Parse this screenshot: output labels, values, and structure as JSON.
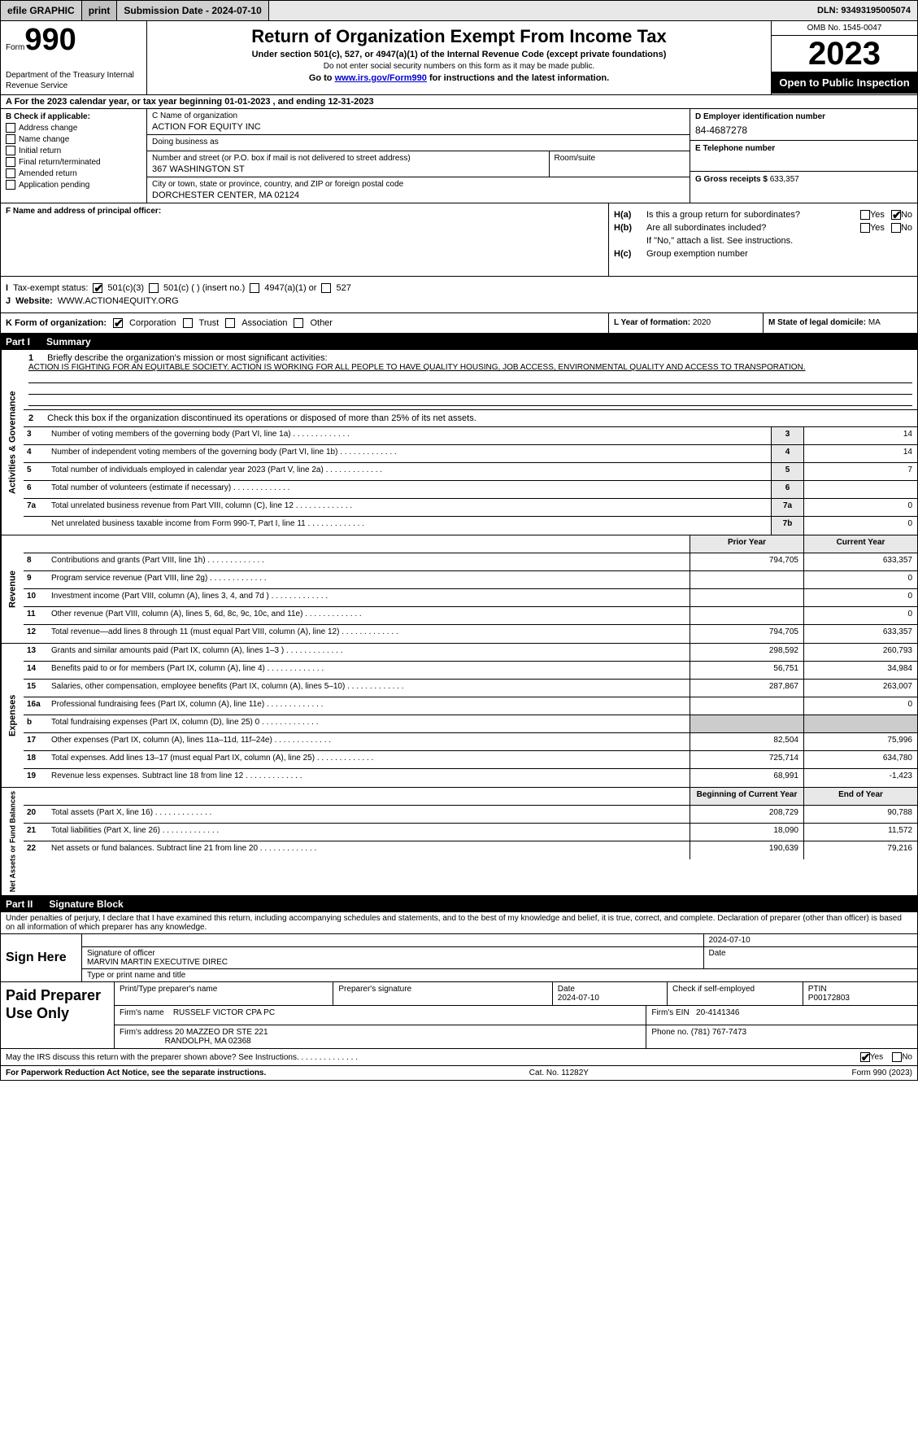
{
  "topbar": {
    "efile_label": "efile GRAPHIC",
    "print": "print",
    "submission_label": "Submission Date - 2024-07-10",
    "dln": "DLN: 93493195005074"
  },
  "header": {
    "form_prefix": "Form",
    "form_number": "990",
    "dept": "Department of the Treasury\nInternal Revenue Service",
    "title": "Return of Organization Exempt From Income Tax",
    "subtitle": "Under section 501(c), 527, or 4947(a)(1) of the Internal Revenue Code (except private foundations)",
    "warning": "Do not enter social security numbers on this form as it may be made public.",
    "goto_pre": "Go to ",
    "goto_link": "www.irs.gov/Form990",
    "goto_post": " for instructions and the latest information.",
    "omb": "OMB No. 1545-0047",
    "year": "2023",
    "inspect": "Open to Public Inspection"
  },
  "row_a": "A For the 2023 calendar year, or tax year beginning 01-01-2023   , and ending 12-31-2023",
  "col_b": {
    "heading": "B Check if applicable:",
    "items": [
      "Address change",
      "Name change",
      "Initial return",
      "Final return/terminated",
      "Amended return",
      "Application pending"
    ]
  },
  "col_c": {
    "name_label": "C Name of organization",
    "name_value": "ACTION FOR EQUITY INC",
    "dba_label": "Doing business as",
    "dba_value": "",
    "street_label": "Number and street (or P.O. box if mail is not delivered to street address)",
    "street_value": "367 WASHINGTON ST",
    "room_label": "Room/suite",
    "room_value": "",
    "city_label": "City or town, state or province, country, and ZIP or foreign postal code",
    "city_value": "DORCHESTER CENTER, MA  02124"
  },
  "col_d": {
    "ein_label": "D Employer identification number",
    "ein_value": "84-4687278",
    "phone_label": "E Telephone number",
    "phone_value": "",
    "gross_label": "G Gross receipts $",
    "gross_value": "633,357"
  },
  "section_f": {
    "label": "F  Name and address of principal officer:",
    "value": ""
  },
  "section_h": {
    "ha_label": "H(a)",
    "ha_text": "Is this a group return for subordinates?",
    "hb_label": "H(b)",
    "hb_text": "Are all subordinates included?",
    "hb_note": "If \"No,\" attach a list. See instructions.",
    "hc_label": "H(c)",
    "hc_text": "Group exemption number",
    "yes": "Yes",
    "no": "No"
  },
  "section_i": {
    "label": "I",
    "text": "Tax-exempt status:",
    "opt1": "501(c)(3)",
    "opt2": "501(c) (  ) (insert no.)",
    "opt3": "4947(a)(1) or",
    "opt4": "527"
  },
  "section_j": {
    "label": "J",
    "text": "Website:",
    "value": "WWW.ACTION4EQUITY.ORG"
  },
  "section_k": {
    "label": "K Form of organization:",
    "opts": [
      "Corporation",
      "Trust",
      "Association",
      "Other"
    ]
  },
  "section_l": {
    "label": "L Year of formation:",
    "value": "2020"
  },
  "section_m": {
    "label": "M State of legal domicile:",
    "value": "MA"
  },
  "part1": {
    "header_part": "Part I",
    "header_title": "Summary",
    "line1_label": "1",
    "line1_text": "Briefly describe the organization's mission or most significant activities:",
    "mission": "ACTION IS FIGHTING FOR AN EQUITABLE SOCIETY. ACTION IS WORKING FOR ALL PEOPLE TO HAVE QUALITY HOUSING, JOB ACCESS, ENVIRONMENTAL QUALITY AND ACCESS TO TRANSPORATION.",
    "line2_label": "2",
    "line2_text": "Check this box      if the organization discontinued its operations or disposed of more than 25% of its net assets.",
    "gov_side": "Activities & Governance",
    "gov_rows": [
      {
        "n": "3",
        "desc": "Number of voting members of the governing body (Part VI, line 1a)",
        "box": "3",
        "val": "14"
      },
      {
        "n": "4",
        "desc": "Number of independent voting members of the governing body (Part VI, line 1b)",
        "box": "4",
        "val": "14"
      },
      {
        "n": "5",
        "desc": "Total number of individuals employed in calendar year 2023 (Part V, line 2a)",
        "box": "5",
        "val": "7"
      },
      {
        "n": "6",
        "desc": "Total number of volunteers (estimate if necessary)",
        "box": "6",
        "val": ""
      },
      {
        "n": "7a",
        "desc": "Total unrelated business revenue from Part VIII, column (C), line 12",
        "box": "7a",
        "val": "0"
      },
      {
        "n": "",
        "desc": "Net unrelated business taxable income from Form 990-T, Part I, line 11",
        "box": "7b",
        "val": "0"
      }
    ],
    "col_header_prior": "Prior Year",
    "col_header_current": "Current Year",
    "rev_side": "Revenue",
    "rev_rows": [
      {
        "n": "8",
        "desc": "Contributions and grants (Part VIII, line 1h)",
        "prior": "794,705",
        "curr": "633,357"
      },
      {
        "n": "9",
        "desc": "Program service revenue (Part VIII, line 2g)",
        "prior": "",
        "curr": "0"
      },
      {
        "n": "10",
        "desc": "Investment income (Part VIII, column (A), lines 3, 4, and 7d )",
        "prior": "",
        "curr": "0"
      },
      {
        "n": "11",
        "desc": "Other revenue (Part VIII, column (A), lines 5, 6d, 8c, 9c, 10c, and 11e)",
        "prior": "",
        "curr": "0"
      },
      {
        "n": "12",
        "desc": "Total revenue—add lines 8 through 11 (must equal Part VIII, column (A), line 12)",
        "prior": "794,705",
        "curr": "633,357"
      }
    ],
    "exp_side": "Expenses",
    "exp_rows": [
      {
        "n": "13",
        "desc": "Grants and similar amounts paid (Part IX, column (A), lines 1–3 )",
        "prior": "298,592",
        "curr": "260,793"
      },
      {
        "n": "14",
        "desc": "Benefits paid to or for members (Part IX, column (A), line 4)",
        "prior": "56,751",
        "curr": "34,984"
      },
      {
        "n": "15",
        "desc": "Salaries, other compensation, employee benefits (Part IX, column (A), lines 5–10)",
        "prior": "287,867",
        "curr": "263,007"
      },
      {
        "n": "16a",
        "desc": "Professional fundraising fees (Part IX, column (A), line 11e)",
        "prior": "",
        "curr": "0"
      },
      {
        "n": "b",
        "desc": "Total fundraising expenses (Part IX, column (D), line 25) 0",
        "prior": "SHADE",
        "curr": "SHADE"
      },
      {
        "n": "17",
        "desc": "Other expenses (Part IX, column (A), lines 11a–11d, 11f–24e)",
        "prior": "82,504",
        "curr": "75,996"
      },
      {
        "n": "18",
        "desc": "Total expenses. Add lines 13–17 (must equal Part IX, column (A), line 25)",
        "prior": "725,714",
        "curr": "634,780"
      },
      {
        "n": "19",
        "desc": "Revenue less expenses. Subtract line 18 from line 12",
        "prior": "68,991",
        "curr": "-1,423"
      }
    ],
    "net_side": "Net Assets or Fund Balances",
    "net_header_prior": "Beginning of Current Year",
    "net_header_curr": "End of Year",
    "net_rows": [
      {
        "n": "20",
        "desc": "Total assets (Part X, line 16)",
        "prior": "208,729",
        "curr": "90,788"
      },
      {
        "n": "21",
        "desc": "Total liabilities (Part X, line 26)",
        "prior": "18,090",
        "curr": "11,572"
      },
      {
        "n": "22",
        "desc": "Net assets or fund balances. Subtract line 21 from line 20",
        "prior": "190,639",
        "curr": "79,216"
      }
    ]
  },
  "part2": {
    "header_part": "Part II",
    "header_title": "Signature Block",
    "penalty": "Under penalties of perjury, I declare that I have examined this return, including accompanying schedules and statements, and to the best of my knowledge and belief, it is true, correct, and complete. Declaration of preparer (other than officer) is based on all information of which preparer has any knowledge.",
    "sign_here": "Sign Here",
    "sig_officer_label": "Signature of officer",
    "sig_date": "2024-07-10",
    "date_label": "Date",
    "officer_name": "MARVIN MARTIN  EXECUTIVE DIREC",
    "officer_title_label": "Type or print name and title",
    "paid_label": "Paid Preparer Use Only",
    "prep_name_label": "Print/Type preparer's name",
    "prep_sig_label": "Preparer's signature",
    "prep_date_label": "Date",
    "prep_date": "2024-07-10",
    "check_self": "Check      if self-employed",
    "ptin_label": "PTIN",
    "ptin": "P00172803",
    "firm_name_label": "Firm's name",
    "firm_name": "RUSSELF VICTOR CPA PC",
    "firm_ein_label": "Firm's EIN",
    "firm_ein": "20-4141346",
    "firm_addr_label": "Firm's address",
    "firm_addr1": "20 MAZZEO DR STE 221",
    "firm_addr2": "RANDOLPH, MA  02368",
    "firm_phone_label": "Phone no.",
    "firm_phone": "(781) 767-7473",
    "irs_discuss": "May the IRS discuss this return with the preparer shown above? See Instructions.",
    "yes": "Yes",
    "no": "No"
  },
  "footer": {
    "left": "For Paperwork Reduction Act Notice, see the separate instructions.",
    "mid": "Cat. No. 11282Y",
    "right": "Form 990 (2023)"
  }
}
